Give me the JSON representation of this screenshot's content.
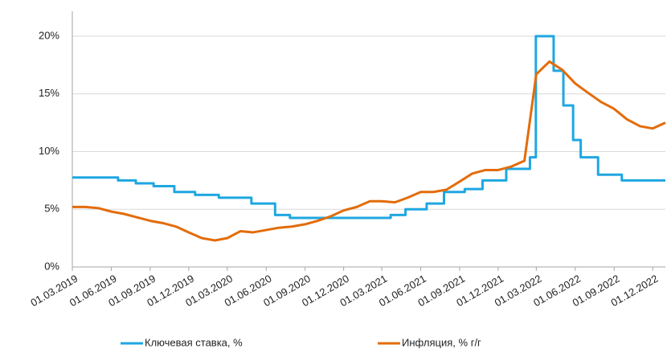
{
  "chart_data": {
    "type": "line",
    "step_series": [
      0
    ],
    "ylim": [
      0,
      20
    ],
    "yticks": [
      {
        "value": 0,
        "label": "0%"
      },
      {
        "value": 5,
        "label": "5%"
      },
      {
        "value": 10,
        "label": "10%"
      },
      {
        "value": 15,
        "label": "15%"
      },
      {
        "value": 20,
        "label": "20%"
      }
    ],
    "xlim": [
      "2019-03-01",
      "2022-12-31"
    ],
    "xticks": [
      {
        "value": "2019-03-01",
        "label": "01.03.2019"
      },
      {
        "value": "2019-06-01",
        "label": "01.06.2019"
      },
      {
        "value": "2019-09-01",
        "label": "01.09.2019"
      },
      {
        "value": "2019-12-01",
        "label": "01.12.2019"
      },
      {
        "value": "2020-03-01",
        "label": "01.03.2020"
      },
      {
        "value": "2020-06-01",
        "label": "01.06.2020"
      },
      {
        "value": "2020-09-01",
        "label": "01.09.2020"
      },
      {
        "value": "2020-12-01",
        "label": "01.12.2020"
      },
      {
        "value": "2021-03-01",
        "label": "01.03.2021"
      },
      {
        "value": "2021-06-01",
        "label": "01.06.2021"
      },
      {
        "value": "2021-09-01",
        "label": "01.09.2021"
      },
      {
        "value": "2021-12-01",
        "label": "01.12.2021"
      },
      {
        "value": "2022-03-01",
        "label": "01.03.2022"
      },
      {
        "value": "2022-06-01",
        "label": "01.06.2022"
      },
      {
        "value": "2022-09-01",
        "label": "01.09.2022"
      },
      {
        "value": "2022-12-01",
        "label": "01.12.2022"
      }
    ],
    "grid": true,
    "series": [
      {
        "name": "Ключевая ставка, %",
        "color": "#1ea7e1",
        "x": [
          "2019-03-01",
          "2019-06-17",
          "2019-07-29",
          "2019-09-09",
          "2019-10-28",
          "2019-12-16",
          "2020-02-10",
          "2020-04-27",
          "2020-06-22",
          "2020-07-27",
          "2021-03-22",
          "2021-04-26",
          "2021-06-15",
          "2021-07-26",
          "2021-09-13",
          "2021-10-25",
          "2021-12-20",
          "2022-02-14",
          "2022-02-28",
          "2022-04-11",
          "2022-05-04",
          "2022-05-27",
          "2022-06-14",
          "2022-07-25",
          "2022-09-19"
        ],
        "values": [
          7.75,
          7.5,
          7.25,
          7.0,
          6.5,
          6.25,
          6.0,
          5.5,
          4.5,
          4.25,
          4.5,
          5.0,
          5.5,
          6.5,
          6.75,
          7.5,
          8.5,
          9.5,
          20,
          17,
          14,
          11,
          9.5,
          8.0,
          7.5
        ]
      },
      {
        "name": "Инфляция, % г/г",
        "color": "#e36c0a",
        "x": [
          "2019-03-01",
          "2019-04-01",
          "2019-05-01",
          "2019-06-01",
          "2019-07-01",
          "2019-08-01",
          "2019-09-01",
          "2019-10-01",
          "2019-11-01",
          "2019-12-01",
          "2020-01-01",
          "2020-02-01",
          "2020-03-01",
          "2020-04-01",
          "2020-05-01",
          "2020-06-01",
          "2020-07-01",
          "2020-08-01",
          "2020-09-01",
          "2020-10-01",
          "2020-11-01",
          "2020-12-01",
          "2021-01-01",
          "2021-02-01",
          "2021-03-01",
          "2021-04-01",
          "2021-05-01",
          "2021-06-01",
          "2021-07-01",
          "2021-08-01",
          "2021-09-01",
          "2021-10-01",
          "2021-11-01",
          "2021-12-01",
          "2022-01-01",
          "2022-02-01",
          "2022-03-01",
          "2022-04-01",
          "2022-05-01",
          "2022-06-01",
          "2022-07-01",
          "2022-08-01",
          "2022-09-01",
          "2022-10-01",
          "2022-11-01",
          "2022-12-01",
          "2022-12-31"
        ],
        "values": [
          5.2,
          5.2,
          5.1,
          4.8,
          4.6,
          4.3,
          4.0,
          3.8,
          3.5,
          3.0,
          2.5,
          2.3,
          2.5,
          3.1,
          3.0,
          3.2,
          3.4,
          3.5,
          3.7,
          4.0,
          4.4,
          4.9,
          5.2,
          5.7,
          5.7,
          5.6,
          6.0,
          6.5,
          6.5,
          6.7,
          7.4,
          8.1,
          8.4,
          8.4,
          8.7,
          9.2,
          16.7,
          17.8,
          17.1,
          15.9,
          15.1,
          14.3,
          13.7,
          12.8,
          12.2,
          12.0,
          12.5
        ]
      }
    ]
  }
}
